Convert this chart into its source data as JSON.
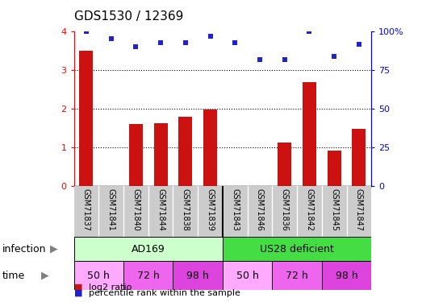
{
  "title": "GDS1530 / 12369",
  "samples": [
    "GSM71837",
    "GSM71841",
    "GSM71840",
    "GSM71844",
    "GSM71838",
    "GSM71839",
    "GSM71843",
    "GSM71846",
    "GSM71836",
    "GSM71842",
    "GSM71845",
    "GSM71847"
  ],
  "log2_ratio": [
    3.5,
    0.0,
    1.6,
    1.63,
    1.8,
    1.97,
    0.0,
    0.0,
    1.12,
    2.7,
    0.92,
    1.47
  ],
  "percentile": [
    4.0,
    3.82,
    3.62,
    3.72,
    3.72,
    3.88,
    3.72,
    3.27,
    3.28,
    4.0,
    3.35,
    3.68
  ],
  "bar_color": "#cc1111",
  "dot_color": "#2222cc",
  "ylim": [
    0,
    4
  ],
  "yticks": [
    0,
    1,
    2,
    3,
    4
  ],
  "y2ticks": [
    0,
    25,
    50,
    75,
    100
  ],
  "infection_groups": [
    {
      "label": "AD169",
      "start": 0,
      "end": 6,
      "color": "#ccffcc"
    },
    {
      "label": "US28 deficient",
      "start": 6,
      "end": 12,
      "color": "#44dd44"
    }
  ],
  "time_groups": [
    {
      "label": "50 h",
      "start": 0,
      "end": 2,
      "color": "#ffaaff"
    },
    {
      "label": "72 h",
      "start": 2,
      "end": 4,
      "color": "#ee66ee"
    },
    {
      "label": "98 h",
      "start": 4,
      "end": 6,
      "color": "#dd44dd"
    },
    {
      "label": "50 h",
      "start": 6,
      "end": 8,
      "color": "#ffaaff"
    },
    {
      "label": "72 h",
      "start": 8,
      "end": 10,
      "color": "#ee66ee"
    },
    {
      "label": "98 h",
      "start": 10,
      "end": 12,
      "color": "#dd44dd"
    }
  ],
  "infection_label": "infection",
  "time_label": "time",
  "legend_bar_label": "log2 ratio",
  "legend_dot_label": "percentile rank within the sample",
  "background_color": "#ffffff",
  "tick_area_color": "#cccccc",
  "label_fontsize": 9,
  "tick_fontsize": 8,
  "title_fontsize": 11
}
